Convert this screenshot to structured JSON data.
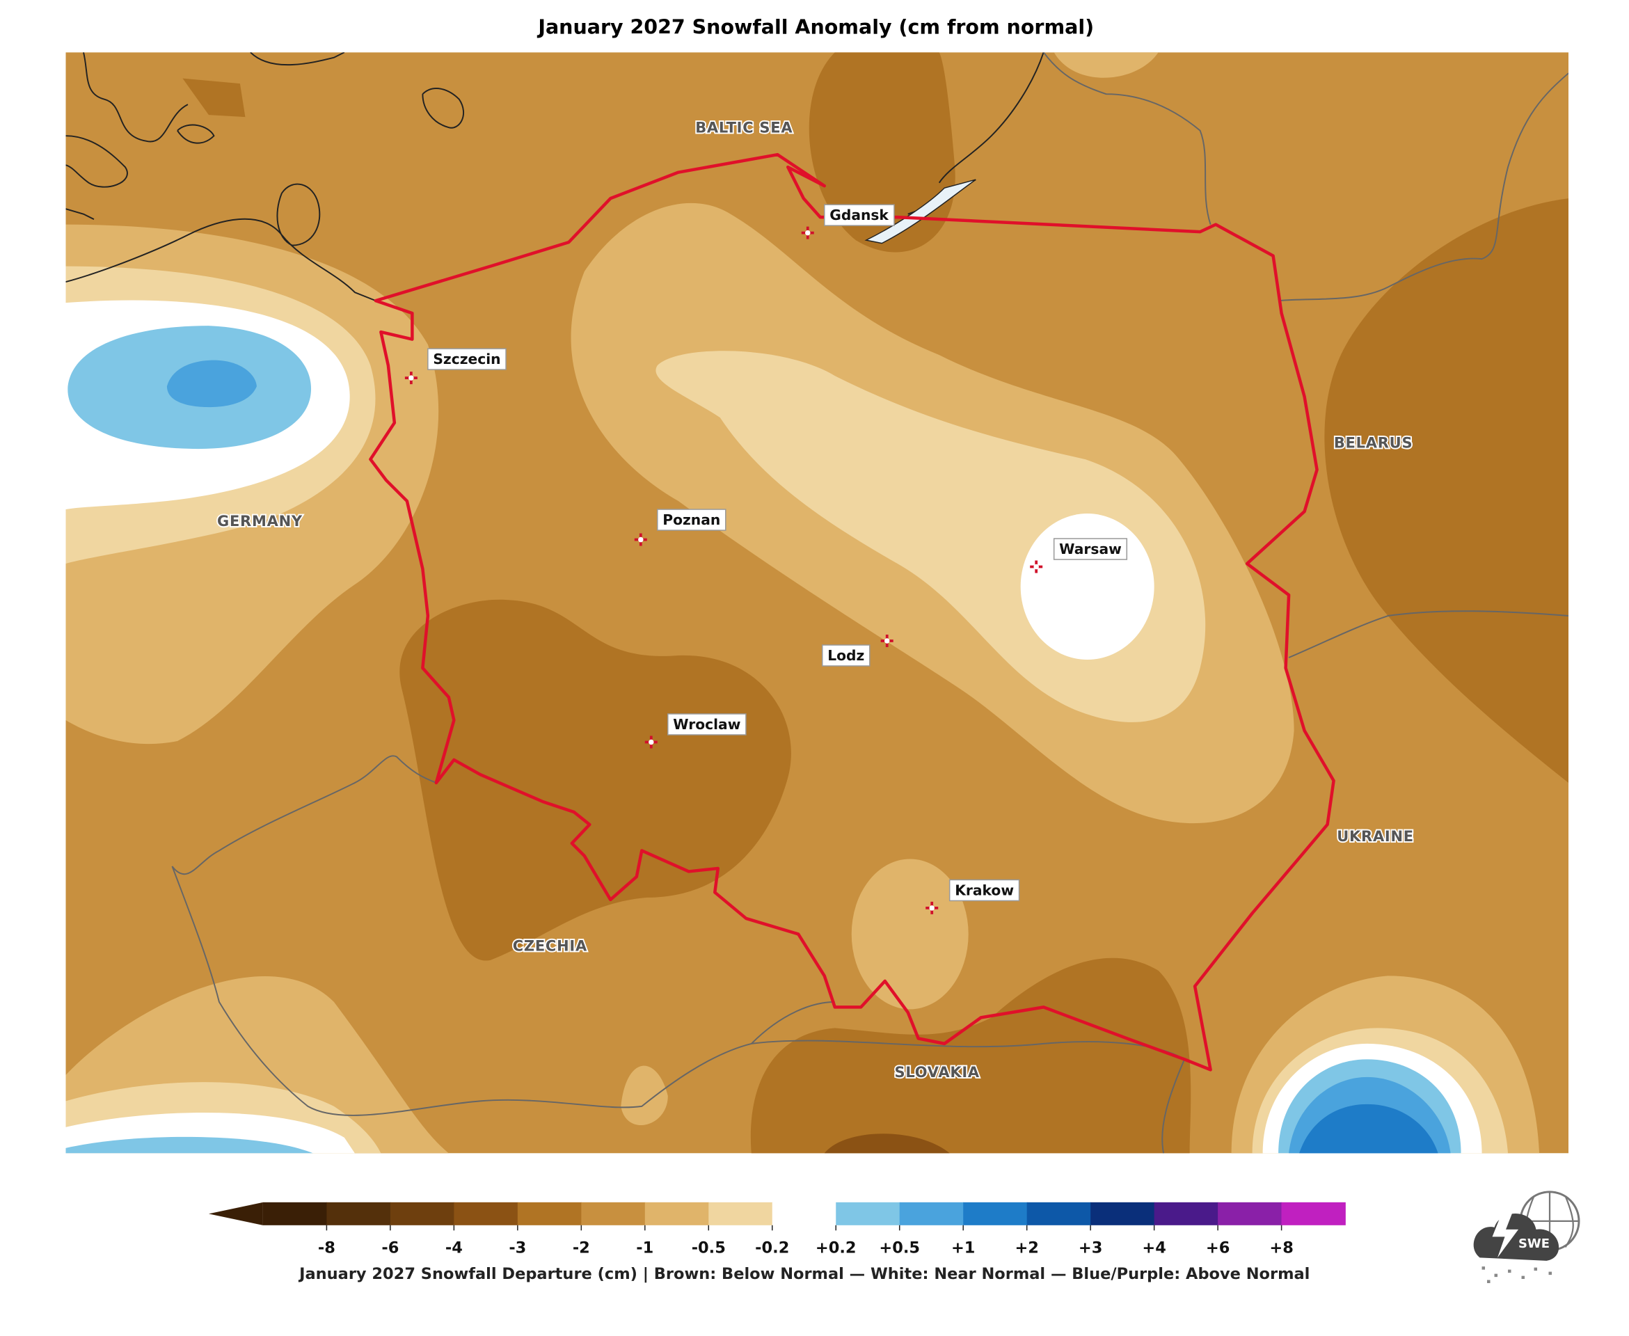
{
  "title": "January 2027 Snowfall Anomaly (cm from normal)",
  "cities": [
    "Gdansk",
    "Szczecin",
    "Poznan",
    "Warsaw",
    "Lodz",
    "Wroclaw",
    "Krakow"
  ],
  "regions": [
    "BALTIC SEA",
    "GERMANY",
    "BELARUS",
    "UKRAINE",
    "CZECHIA",
    "SLOVAKIA"
  ],
  "colorbar": {
    "ticks": [
      -8,
      -6,
      -4,
      -3,
      -2,
      -1,
      -0.5,
      -0.2,
      {
        "value": 0.2,
        "label": "+0.2"
      },
      {
        "value": 0.5,
        "label": "+0.5"
      },
      {
        "value": 1,
        "label": "+1"
      },
      {
        "value": 2,
        "label": "+2"
      },
      {
        "value": 3,
        "label": "+3"
      },
      {
        "value": 4,
        "label": "+4"
      },
      {
        "value": 6,
        "label": "+6"
      },
      {
        "value": 8,
        "label": "+8"
      }
    ],
    "colors": [
      "#3a1f06",
      "#54300b",
      "#6e3f0e",
      "#8b5214",
      "#b07424",
      "#c8903f",
      "#e0b46a",
      "#f0d6a0",
      "#ffffff",
      "#7fc6e6",
      "#4aa3dd",
      "#1e7cc8",
      "#0d58a8",
      "#0a2f7a",
      "#4a1a8a",
      "#8a20a8",
      "#c020c0"
    ],
    "label": "January 2027 Snowfall Departure (cm)  |  Brown: Below Normal  —  White: Near Normal  —  Blue/Purple: Above Normal"
  },
  "logo": "SWE"
}
